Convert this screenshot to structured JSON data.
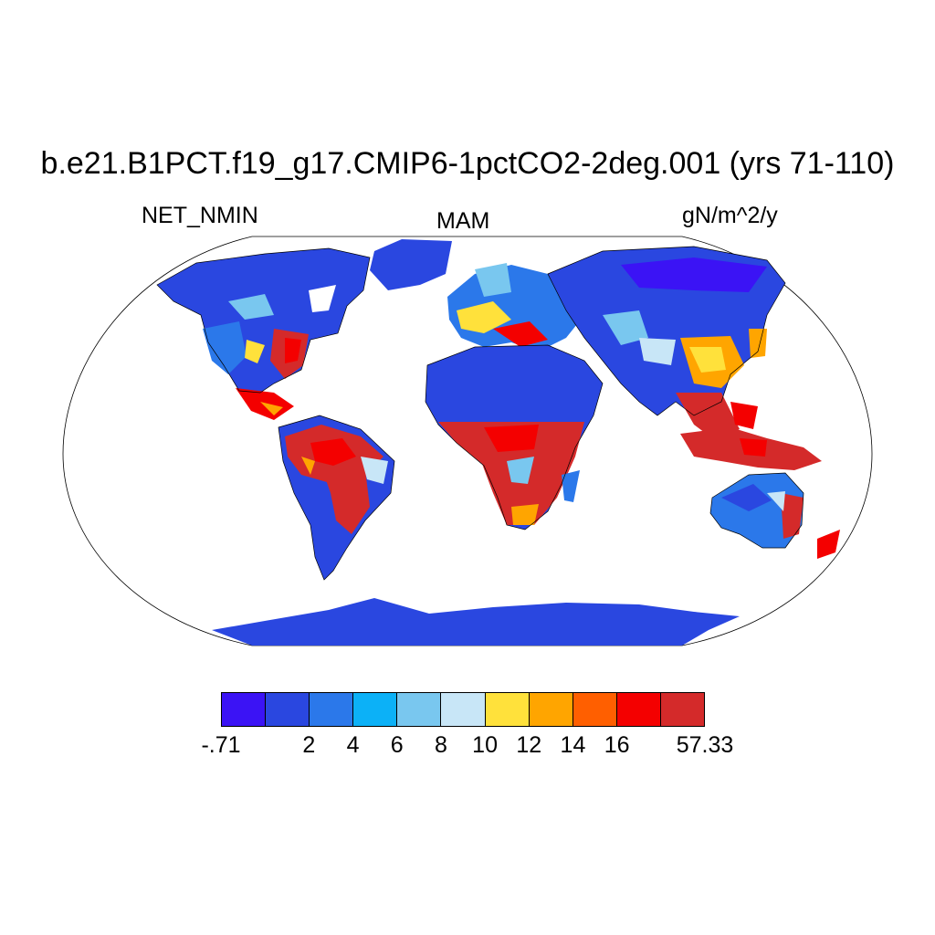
{
  "title": "b.e21.B1PCT.f19_g17.CMIP6-1pctCO2-2deg.001 (yrs 71-110)",
  "variable": "NET_NMIN",
  "season": "MAM",
  "units": "gN/m^2/y",
  "colorbar": {
    "colors": [
      "#3b13f5",
      "#2a47e0",
      "#2b78ea",
      "#0cb1f7",
      "#79c7ef",
      "#c8e6f7",
      "#ffe13b",
      "#ffa500",
      "#ff5f00",
      "#f40000",
      "#d42a2a"
    ],
    "labels": [
      "-.71",
      "2",
      "4",
      "6",
      "8",
      "10",
      "12",
      "14",
      "16",
      "57.33"
    ]
  },
  "colors": {
    "ocean": "#ffffff",
    "coast": "#000000"
  }
}
